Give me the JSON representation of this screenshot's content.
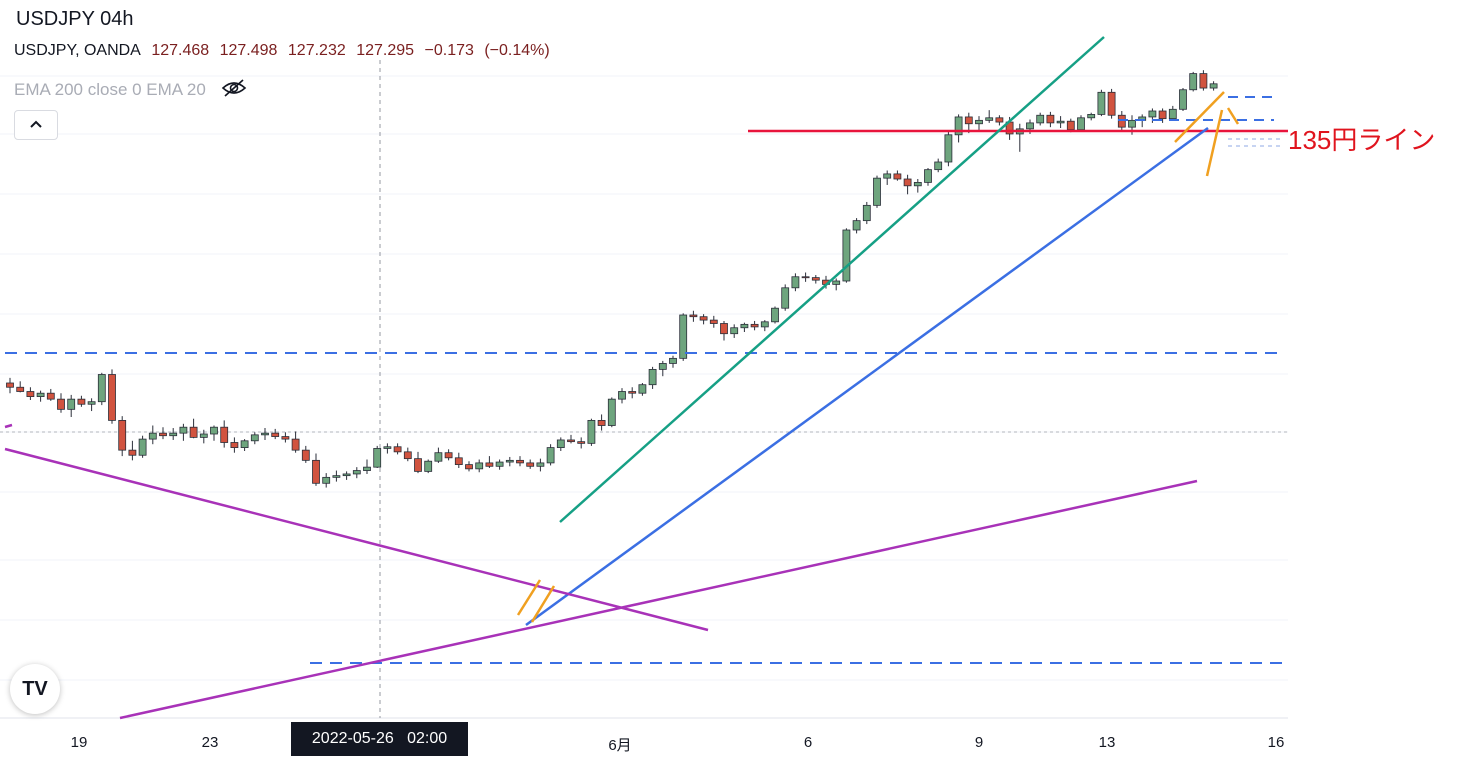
{
  "header": {
    "title": "USDJPY 04h",
    "symbol": "USDJPY, OANDA",
    "open": "127.468",
    "high": "127.498",
    "low": "127.232",
    "close": "127.295",
    "change": "−0.173",
    "change_pct": "(−0.14%)"
  },
  "indicator": {
    "label": "EMA 200 close 0 EMA 20",
    "icon": "eye-hidden-icon"
  },
  "collapse_button": {
    "icon": "chevron-up-icon"
  },
  "annotation": {
    "line_label": "135円ライン",
    "color": "#e0141e"
  },
  "crosshair": {
    "label": "2022-05-26   02:00"
  },
  "logo": {
    "text": "TV"
  },
  "colors": {
    "up": "#6ea57e",
    "down": "#d1533f",
    "channel_upper": "#16a085",
    "channel_lower": "#3b6fe3",
    "triangle": "#a832b8",
    "pennant": "#f0a020",
    "dashed": "#3b6fe3",
    "resistance": "#e8143c"
  },
  "chart_data": {
    "type": "candlestick",
    "symbol": "USDJPY",
    "timeframe": "04h",
    "x_ticks": [
      "19",
      "23",
      "6月",
      "6",
      "9",
      "13",
      "16"
    ],
    "ohlc_last": {
      "open": 127.468,
      "high": 127.498,
      "low": 127.232,
      "close": 127.295
    },
    "candles_approx": [
      [
        42.0,
        42.6,
        40.8,
        41.5
      ],
      [
        41.5,
        42.2,
        40.9,
        41.0
      ],
      [
        41.0,
        41.5,
        40.0,
        40.4
      ],
      [
        40.4,
        41.1,
        39.8,
        40.8
      ],
      [
        40.8,
        41.3,
        39.9,
        40.1
      ],
      [
        40.1,
        40.8,
        38.5,
        38.9
      ],
      [
        38.9,
        40.6,
        38.0,
        40.1
      ],
      [
        40.1,
        40.5,
        39.2,
        39.5
      ],
      [
        39.5,
        40.2,
        38.7,
        39.8
      ],
      [
        39.8,
        43.2,
        39.4,
        43.0
      ],
      [
        43.0,
        43.6,
        37.2,
        37.6
      ],
      [
        37.6,
        38.1,
        33.4,
        34.1
      ],
      [
        34.1,
        35.2,
        32.9,
        33.5
      ],
      [
        33.5,
        35.8,
        33.2,
        35.4
      ],
      [
        35.4,
        37.0,
        34.8,
        36.1
      ],
      [
        36.1,
        36.8,
        35.4,
        35.8
      ],
      [
        35.8,
        36.7,
        35.3,
        36.1
      ],
      [
        36.1,
        37.2,
        35.2,
        36.8
      ],
      [
        36.8,
        37.8,
        35.5,
        35.6
      ],
      [
        35.6,
        36.5,
        34.9,
        36.0
      ],
      [
        36.0,
        37.0,
        35.2,
        36.8
      ],
      [
        36.8,
        37.6,
        34.4,
        35.0
      ],
      [
        35.0,
        35.6,
        33.8,
        34.4
      ],
      [
        34.4,
        35.4,
        34.0,
        35.2
      ],
      [
        35.2,
        36.2,
        34.8,
        35.9
      ],
      [
        35.9,
        36.7,
        35.3,
        36.1
      ],
      [
        36.1,
        36.6,
        35.4,
        35.7
      ],
      [
        35.7,
        36.2,
        35.0,
        35.4
      ],
      [
        35.4,
        36.3,
        33.8,
        34.1
      ],
      [
        34.1,
        34.6,
        32.6,
        32.9
      ],
      [
        32.9,
        33.7,
        29.9,
        30.2
      ],
      [
        30.2,
        31.4,
        29.7,
        30.9
      ],
      [
        30.9,
        31.7,
        30.4,
        31.1
      ],
      [
        31.1,
        31.6,
        30.6,
        31.3
      ],
      [
        31.3,
        32.1,
        30.8,
        31.7
      ],
      [
        31.7,
        33.0,
        31.3,
        32.1
      ],
      [
        32.1,
        34.6,
        32.0,
        34.3
      ],
      [
        34.3,
        34.9,
        33.7,
        34.5
      ],
      [
        34.5,
        34.9,
        33.6,
        33.9
      ],
      [
        33.9,
        34.4,
        32.8,
        33.1
      ],
      [
        33.1,
        33.9,
        31.4,
        31.6
      ],
      [
        31.6,
        33.0,
        31.4,
        32.8
      ],
      [
        32.8,
        34.4,
        32.6,
        33.8
      ],
      [
        33.8,
        34.2,
        32.9,
        33.2
      ],
      [
        33.2,
        33.8,
        32.0,
        32.4
      ],
      [
        32.4,
        32.8,
        31.6,
        31.9
      ],
      [
        31.9,
        33.0,
        31.5,
        32.6
      ],
      [
        32.6,
        33.4,
        32.0,
        32.2
      ],
      [
        32.2,
        33.0,
        31.8,
        32.7
      ],
      [
        32.7,
        33.3,
        32.2,
        32.9
      ],
      [
        32.9,
        33.4,
        32.2,
        32.6
      ],
      [
        32.6,
        33.0,
        31.9,
        32.2
      ],
      [
        32.2,
        33.1,
        31.6,
        32.6
      ],
      [
        32.6,
        34.8,
        32.3,
        34.4
      ],
      [
        34.4,
        35.6,
        34.0,
        35.3
      ],
      [
        35.3,
        35.9,
        34.9,
        35.1
      ],
      [
        35.1,
        35.6,
        34.3,
        34.9
      ],
      [
        34.9,
        37.8,
        34.6,
        37.6
      ],
      [
        37.6,
        38.3,
        36.4,
        37.0
      ],
      [
        37.0,
        40.3,
        36.8,
        40.1
      ],
      [
        40.1,
        41.4,
        39.6,
        41.0
      ],
      [
        41.0,
        41.5,
        40.2,
        40.8
      ],
      [
        40.8,
        42.0,
        40.5,
        41.8
      ],
      [
        41.8,
        43.9,
        41.3,
        43.6
      ],
      [
        43.6,
        44.6,
        42.8,
        44.3
      ],
      [
        44.3,
        45.2,
        43.8,
        44.9
      ],
      [
        44.9,
        50.2,
        44.6,
        50.0
      ],
      [
        50.0,
        50.5,
        49.2,
        49.8
      ],
      [
        49.8,
        50.1,
        48.9,
        49.4
      ],
      [
        49.4,
        49.9,
        48.5,
        49.0
      ],
      [
        49.0,
        49.3,
        47.0,
        47.8
      ],
      [
        47.8,
        48.9,
        47.3,
        48.5
      ],
      [
        48.5,
        49.1,
        48.0,
        48.9
      ],
      [
        48.9,
        49.3,
        48.2,
        48.6
      ],
      [
        48.6,
        49.4,
        48.1,
        49.2
      ],
      [
        49.2,
        51.0,
        49.0,
        50.8
      ],
      [
        50.8,
        53.6,
        50.5,
        53.2
      ],
      [
        53.2,
        54.9,
        52.8,
        54.5
      ],
      [
        54.5,
        55.0,
        53.9,
        54.4
      ],
      [
        54.4,
        54.7,
        53.7,
        54.1
      ],
      [
        54.1,
        54.6,
        53.1,
        53.6
      ],
      [
        53.6,
        54.3,
        52.9,
        54.0
      ],
      [
        54.0,
        60.2,
        53.8,
        60.0
      ],
      [
        60.0,
        61.4,
        59.6,
        61.1
      ],
      [
        61.1,
        63.3,
        60.7,
        62.9
      ],
      [
        62.9,
        66.4,
        62.6,
        66.1
      ],
      [
        66.1,
        67.0,
        65.3,
        66.6
      ],
      [
        66.6,
        67.0,
        65.8,
        66.0
      ],
      [
        66.0,
        66.5,
        64.2,
        65.2
      ],
      [
        65.2,
        66.0,
        64.4,
        65.6
      ],
      [
        65.6,
        67.3,
        65.2,
        67.1
      ],
      [
        67.1,
        68.4,
        66.8,
        68.0
      ],
      [
        68.0,
        71.7,
        67.5,
        71.2
      ],
      [
        71.2,
        73.6,
        70.3,
        73.3
      ],
      [
        73.3,
        73.8,
        71.4,
        72.5
      ],
      [
        72.5,
        73.4,
        71.7,
        72.9
      ],
      [
        72.9,
        74.1,
        72.6,
        73.2
      ],
      [
        73.2,
        73.5,
        72.3,
        72.7
      ],
      [
        72.7,
        73.3,
        70.6,
        71.3
      ],
      [
        71.3,
        72.5,
        69.2,
        71.9
      ],
      [
        71.9,
        73.0,
        71.3,
        72.6
      ],
      [
        72.6,
        73.8,
        72.3,
        73.5
      ],
      [
        73.5,
        73.9,
        72.1,
        72.6
      ],
      [
        72.6,
        73.4,
        72.0,
        72.8
      ],
      [
        72.8,
        73.1,
        71.5,
        71.8
      ],
      [
        71.8,
        73.5,
        71.6,
        73.2
      ],
      [
        73.2,
        73.8,
        72.9,
        73.6
      ],
      [
        73.6,
        76.5,
        73.4,
        76.2
      ],
      [
        76.2,
        76.6,
        73.1,
        73.5
      ],
      [
        73.5,
        74.0,
        71.6,
        72.1
      ],
      [
        72.1,
        73.5,
        71.2,
        72.9
      ],
      [
        72.9,
        73.6,
        72.1,
        73.3
      ],
      [
        73.3,
        74.3,
        72.6,
        74.0
      ],
      [
        74.0,
        74.3,
        72.6,
        73.1
      ],
      [
        73.1,
        74.6,
        72.9,
        74.2
      ],
      [
        74.2,
        76.7,
        74.0,
        76.5
      ],
      [
        76.5,
        78.6,
        76.3,
        78.4
      ],
      [
        78.4,
        78.8,
        76.4,
        76.7
      ],
      [
        76.7,
        77.5,
        76.4,
        77.2
      ]
    ],
    "annotations": {
      "resistance_label": "135円ライン",
      "channel": "ascending",
      "triangle": "converging lines"
    }
  }
}
